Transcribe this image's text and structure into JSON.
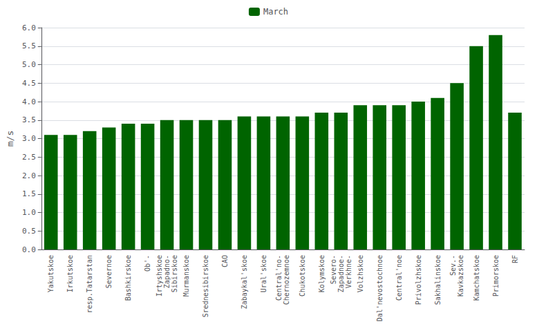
{
  "chart_data": {
    "type": "bar",
    "categories": [
      "Yakutskoe",
      "Irkutskoe",
      "resp.Tatarstan",
      "Severnoe",
      "Bashkirskoe",
      "Ob'-",
      "Irtyshskoe\nZapadno-\nSibirskoe",
      "Murmanskoe",
      "Srednesibirskoe",
      "CAO",
      "Zabaykal'skoe",
      "Ural'skoe",
      "Central'no-\nChernozemnoe",
      "Chukotskoe",
      "Kolymskoe",
      "Severo-\nZapadnoe-\nVerkhne-",
      "Volzhskoe",
      "Dal'nevostochnoe",
      "Central'noe",
      "Privolzhskoe",
      "Sakhalinskoe",
      "Sev.-\nKavkazskoe",
      "Kamchatskoe",
      "Primorskoe",
      "RF"
    ],
    "series": [
      {
        "name": "March",
        "color": "#006400",
        "values": [
          3.1,
          3.1,
          3.2,
          3.3,
          3.4,
          3.4,
          3.5,
          3.5,
          3.5,
          3.5,
          3.6,
          3.6,
          3.6,
          3.6,
          3.7,
          3.7,
          3.9,
          3.9,
          3.9,
          4.0,
          4.1,
          4.5,
          5.5,
          5.8,
          3.7
        ]
      }
    ],
    "ylabel": "m/s",
    "ylim": [
      0,
      6
    ],
    "yticks": [
      {
        "value": 0,
        "label": "0.0"
      },
      0.5,
      {
        "value": 1,
        "label": "1.0"
      },
      1.5,
      {
        "value": 2,
        "label": "2.0"
      },
      2.5,
      {
        "value": 3,
        "label": "3.0"
      },
      3.5,
      {
        "value": 4,
        "label": "4.0"
      },
      4.5,
      {
        "value": 5,
        "label": "5.0"
      },
      5.5,
      {
        "value": 6,
        "label": "6.0"
      }
    ],
    "grid": true,
    "legend": "upper center"
  }
}
